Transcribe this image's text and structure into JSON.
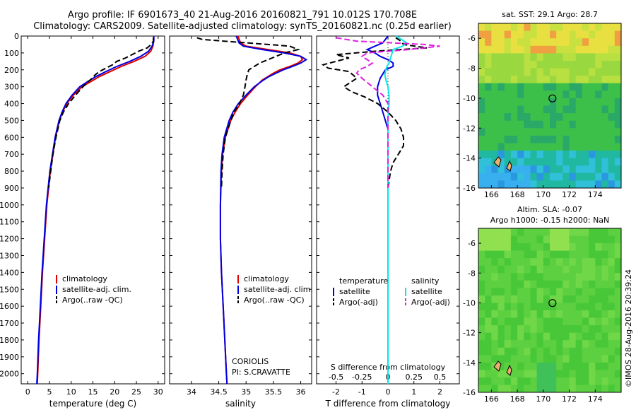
{
  "title_line1": "Argo profile: IF 6901673_40 21-Aug-2016 20160821_791 10.012S 170.708E",
  "title_line2": "Climatology: CARS2009. Satellite-adjusted climatology: synTS_20160821.nc (0.25d earlier)",
  "side_label": "©IMOS 28-Aug-2016 20:39:24",
  "colors": {
    "clim": "#e00000",
    "sat": "#0000e0",
    "argo": "#000000",
    "sal_sat": "#00e8e8",
    "sal_argo": "#e020e0"
  },
  "depth_ticks": [
    0,
    100,
    200,
    300,
    400,
    500,
    600,
    700,
    800,
    900,
    1000,
    1100,
    1200,
    1300,
    1400,
    1500,
    1600,
    1700,
    1800,
    1900,
    2000
  ],
  "chart_data": [
    {
      "type": "line",
      "id": "temperature",
      "xlabel": "temperature (deg C)",
      "ylim": [
        0,
        2060
      ],
      "xlim": [
        -1.5,
        31.5
      ],
      "xticks": [
        0,
        5,
        10,
        15,
        20,
        25,
        30
      ],
      "legend": {
        "position": "bottom-left",
        "entries": [
          "climatology",
          "satellite-adj. clim.",
          "Argo(..raw -QC)"
        ]
      },
      "series": [
        {
          "name": "climatology",
          "color": "#e00000",
          "dash": "",
          "depth": [
            0,
            30,
            60,
            90,
            120,
            150,
            180,
            210,
            240,
            270,
            300,
            350,
            400,
            450,
            500,
            600,
            700,
            800,
            900,
            1000,
            1200,
            1400,
            1600,
            1800,
            2000,
            2060
          ],
          "values": [
            29.0,
            29.0,
            28.8,
            28.3,
            27.0,
            24.5,
            21.5,
            19.0,
            16.5,
            14.5,
            12.5,
            10.5,
            9.0,
            8.0,
            7.3,
            6.4,
            5.8,
            5.2,
            4.8,
            4.4,
            3.9,
            3.4,
            3.0,
            2.6,
            2.3,
            2.2
          ]
        },
        {
          "name": "satellite-adj. clim.",
          "color": "#0000e0",
          "dash": "",
          "depth": [
            0,
            30,
            60,
            90,
            120,
            150,
            180,
            210,
            240,
            270,
            300,
            350,
            400,
            450,
            500,
            600,
            700,
            800,
            900,
            1000,
            1200,
            1400,
            1600,
            1800,
            2000,
            2060
          ],
          "values": [
            29.0,
            29.0,
            28.6,
            27.8,
            26.0,
            23.5,
            20.5,
            18.0,
            15.7,
            13.8,
            12.0,
            10.2,
            8.8,
            7.9,
            7.2,
            6.3,
            5.7,
            5.1,
            4.7,
            4.3,
            3.8,
            3.3,
            2.9,
            2.5,
            2.2,
            2.1
          ]
        },
        {
          "name": "Argo(..raw -QC)",
          "color": "#000000",
          "dash": "8,4",
          "depth": [
            10,
            30,
            50,
            70,
            90,
            110,
            130,
            150,
            170,
            190,
            210,
            230,
            250,
            280,
            300,
            350,
            400,
            450,
            500,
            600,
            700,
            800,
            900
          ],
          "values": [
            28.9,
            28.9,
            28.4,
            27.5,
            25.5,
            24.0,
            22.5,
            20.5,
            19.5,
            18.0,
            16.5,
            15.5,
            14.8,
            13.5,
            12.7,
            11.0,
            9.4,
            8.2,
            7.4,
            6.5,
            5.8,
            5.3,
            4.8
          ]
        }
      ]
    },
    {
      "type": "line",
      "id": "salinity",
      "xlabel": "salinity",
      "ylim": [
        0,
        2060
      ],
      "xlim": [
        33.6,
        36.2
      ],
      "xticks": [
        34,
        34.5,
        35,
        35.5,
        36
      ],
      "legend": {
        "position": "bottom-right",
        "entries": [
          "climatology",
          "satellite-adj. clim.",
          "Argo(..raw -QC)"
        ]
      },
      "footer": {
        "line1": "CORIOLIS",
        "line2": "PI: S.CRAVATTE"
      },
      "series": [
        {
          "name": "climatology",
          "color": "#e00000",
          "dash": "",
          "depth": [
            0,
            40,
            60,
            80,
            100,
            120,
            140,
            160,
            180,
            200,
            220,
            240,
            260,
            300,
            350,
            400,
            450,
            500,
            600,
            700,
            800,
            1000,
            1200,
            1400,
            1600,
            1800,
            2000,
            2060
          ],
          "values": [
            34.85,
            34.9,
            35.0,
            35.4,
            35.8,
            36.0,
            36.03,
            35.95,
            35.8,
            35.62,
            35.5,
            35.4,
            35.3,
            35.17,
            35.03,
            34.9,
            34.8,
            34.72,
            34.62,
            34.57,
            34.55,
            34.53,
            34.53,
            34.55,
            34.58,
            34.61,
            34.64,
            34.65
          ]
        },
        {
          "name": "satellite-adj. clim.",
          "color": "#0000e0",
          "dash": "",
          "depth": [
            0,
            40,
            60,
            80,
            100,
            120,
            140,
            160,
            180,
            200,
            220,
            240,
            260,
            300,
            350,
            400,
            450,
            500,
            600,
            700,
            800,
            1000,
            1200,
            1400,
            1600,
            1800,
            2000,
            2060
          ],
          "values": [
            34.82,
            34.87,
            34.95,
            35.3,
            35.7,
            36.0,
            36.1,
            36.0,
            35.85,
            35.68,
            35.55,
            35.42,
            35.32,
            35.15,
            35.0,
            34.86,
            34.76,
            34.69,
            34.6,
            34.56,
            34.54,
            34.53,
            34.53,
            34.55,
            34.58,
            34.61,
            34.64,
            34.65
          ]
        },
        {
          "name": "Argo(..raw -QC)",
          "color": "#000000",
          "dash": "8,4",
          "depth": [
            10,
            20,
            30,
            45,
            60,
            80,
            100,
            120,
            140,
            160,
            180,
            200,
            230,
            260,
            300,
            350,
            400,
            450,
            500,
            600,
            700,
            800,
            900
          ],
          "values": [
            34.1,
            34.2,
            34.6,
            35.2,
            35.8,
            35.95,
            35.7,
            35.55,
            35.4,
            35.25,
            35.15,
            35.05,
            35.02,
            35.0,
            34.98,
            34.95,
            34.88,
            34.78,
            34.72,
            34.62,
            34.58,
            34.56,
            34.55
          ]
        }
      ]
    },
    {
      "type": "line",
      "id": "difference",
      "xlabel_top": "S difference from climatology",
      "xlabel": "T difference from climatology",
      "ylim": [
        0,
        2060
      ],
      "xlim": [
        -2.75,
        2.75
      ],
      "xticks": [
        -2,
        -1,
        0,
        1,
        2
      ],
      "xticks_top": [
        -0.5,
        -0.25,
        0,
        0.25,
        0.5
      ],
      "legend": {
        "position": "bottom",
        "headers": [
          "temperature",
          "salinity"
        ],
        "entries": [
          "satellite",
          "Argo(-adj)",
          "satellite",
          "Argo(-adj)"
        ]
      },
      "series": [
        {
          "name": "satellite",
          "quantity": "T",
          "color": "#0000e0",
          "dash": "",
          "depth": [
            0,
            40,
            60,
            80,
            100,
            120,
            140,
            160,
            180,
            200,
            250,
            300,
            350,
            400,
            450,
            500,
            550,
            600,
            700,
            800,
            1000,
            1500,
            2000,
            2060
          ],
          "values": [
            0,
            -0.2,
            -0.5,
            -0.8,
            -0.5,
            -0.3,
            0,
            0.2,
            0.2,
            -0.1,
            -0.3,
            -0.4,
            -0.4,
            -0.3,
            -0.2,
            -0.1,
            0,
            0,
            0,
            0,
            0,
            0,
            0,
            0
          ]
        },
        {
          "name": "Argo(-adj)",
          "quantity": "T",
          "color": "#000000",
          "dash": "8,4",
          "depth": [
            10,
            30,
            50,
            70,
            90,
            110,
            130,
            150,
            170,
            190,
            210,
            250,
            300,
            330,
            360,
            400,
            450,
            500,
            550,
            600,
            650,
            700,
            750,
            800,
            900
          ],
          "values": [
            0.3,
            0.5,
            0.6,
            1.5,
            -0.5,
            -2.0,
            -1.5,
            -2.0,
            -2.5,
            -2.3,
            -1.5,
            -1.2,
            -1.7,
            -1.4,
            -0.9,
            -0.4,
            0,
            0.3,
            0.5,
            0.6,
            0.6,
            0.4,
            0.2,
            0.1,
            0
          ]
        },
        {
          "name": "satellite",
          "quantity": "S",
          "color": "#00e8e8",
          "dash": "",
          "depth": [
            0,
            40,
            60,
            80,
            100,
            120,
            140,
            160,
            180,
            200,
            230,
            260,
            300,
            350,
            400,
            500,
            600,
            800,
            1000,
            1500,
            2000,
            2060
          ],
          "values": [
            0.08,
            0.18,
            0.14,
            0.05,
            0.04,
            0.03,
            0.02,
            0.01,
            -0.01,
            -0.02,
            -0.03,
            -0.02,
            0,
            0.01,
            0.01,
            0,
            0,
            0,
            0,
            0,
            0,
            0
          ]
        },
        {
          "name": "Argo(-adj)",
          "quantity": "S",
          "color": "#e020e0",
          "dash": "8,4",
          "depth": [
            10,
            30,
            50,
            60,
            80,
            100,
            120,
            140,
            160,
            180,
            200,
            220,
            250,
            300,
            350,
            400,
            450,
            500,
            600,
            700,
            800,
            900
          ],
          "values": [
            -0.5,
            -0.3,
            0.35,
            0.5,
            0.2,
            -0.2,
            -0.25,
            -0.2,
            -0.15,
            -0.2,
            -0.28,
            -0.3,
            -0.25,
            -0.15,
            -0.05,
            0,
            0,
            0,
            0,
            0,
            0,
            0
          ]
        }
      ]
    }
  ],
  "maps": [
    {
      "id": "sst_map",
      "title": "sat. SST: 29.1 Argo: 28.7",
      "xticks": [
        "166",
        "168",
        "170",
        "172",
        "174"
      ],
      "yticks": [
        "-6",
        "-8",
        "-10",
        "-12",
        "-14",
        "-16"
      ]
    },
    {
      "id": "sla_map",
      "title_line1": "Altim. SLA: -0.07",
      "title_line2": "Argo h1000: -0.15 h2000: NaN",
      "xticks": [
        "166",
        "168",
        "170",
        "172",
        "174"
      ],
      "yticks": [
        "-6",
        "-8",
        "-10",
        "-12",
        "-14",
        "-16"
      ]
    }
  ]
}
